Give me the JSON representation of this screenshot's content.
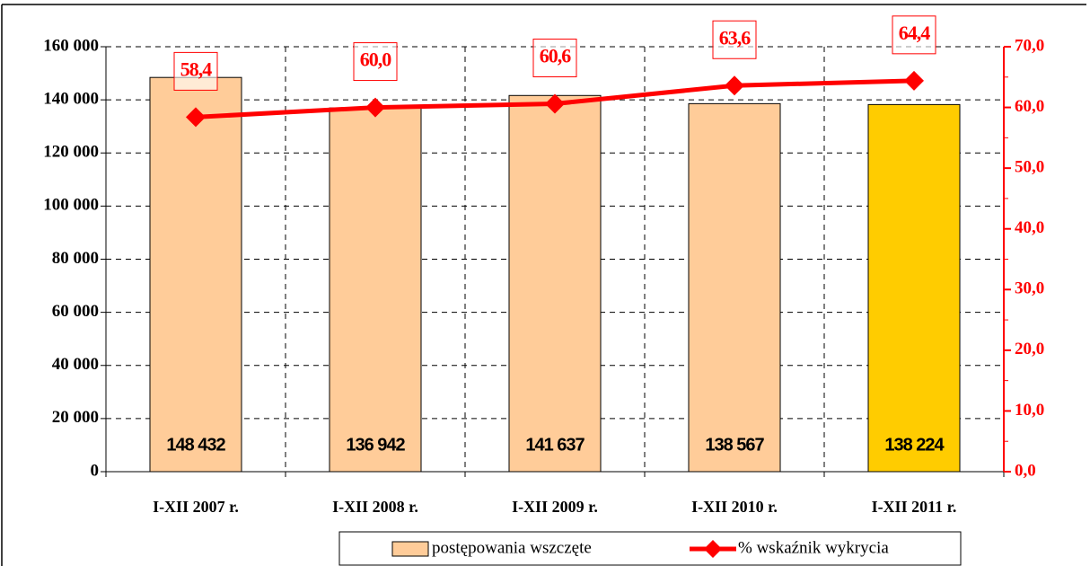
{
  "chart_data": {
    "type": "bar",
    "categories": [
      "I-XII 2007 r.",
      "I-XII 2008 r.",
      "I-XII 2009 r.",
      "I-XII 2010 r.",
      "I-XII 2011 r."
    ],
    "series": [
      {
        "name": "postępowania wszczęte",
        "type": "bar",
        "colors": [
          "#ffcc99",
          "#ffcc99",
          "#ffcc99",
          "#ffcc99",
          "#ffcc00"
        ],
        "values": [
          148432,
          136942,
          141637,
          138567,
          138224
        ],
        "value_labels": [
          "148 432",
          "136 942",
          "141 637",
          "138 567",
          "138 224"
        ]
      },
      {
        "name": "% wskaźnik wykrycia",
        "type": "line",
        "axis": "y2",
        "color": "#ff0000",
        "values": [
          58.4,
          60.0,
          60.6,
          63.6,
          64.4
        ],
        "value_labels": [
          "58,4",
          "60,0",
          "60,6",
          "63,6",
          "64,4"
        ]
      }
    ],
    "ylim": [
      0,
      160000
    ],
    "yticks": [
      0,
      {
        "value": 20000,
        "label": "20 000"
      },
      {
        "value": 40000,
        "label": "40 000"
      },
      {
        "value": 60000,
        "label": "60 000"
      },
      {
        "value": 80000,
        "label": "80 000"
      },
      {
        "value": 100000,
        "label": "100 000"
      },
      {
        "value": 120000,
        "label": "120 000"
      },
      {
        "value": 140000,
        "label": "140 000"
      },
      {
        "value": 160000,
        "label": "160 000"
      }
    ],
    "y2lim": [
      0,
      70
    ],
    "y2ticks": [
      {
        "value": 0,
        "label": "0,0"
      },
      {
        "value": 10,
        "label": "10,0"
      },
      {
        "value": 20,
        "label": "20,0"
      },
      {
        "value": 30,
        "label": "30,0"
      },
      {
        "value": 40,
        "label": "40,0"
      },
      {
        "value": 50,
        "label": "50,0"
      },
      {
        "value": 60,
        "label": "60,0"
      },
      {
        "value": 70,
        "label": "70,0"
      }
    ],
    "grid": true
  }
}
